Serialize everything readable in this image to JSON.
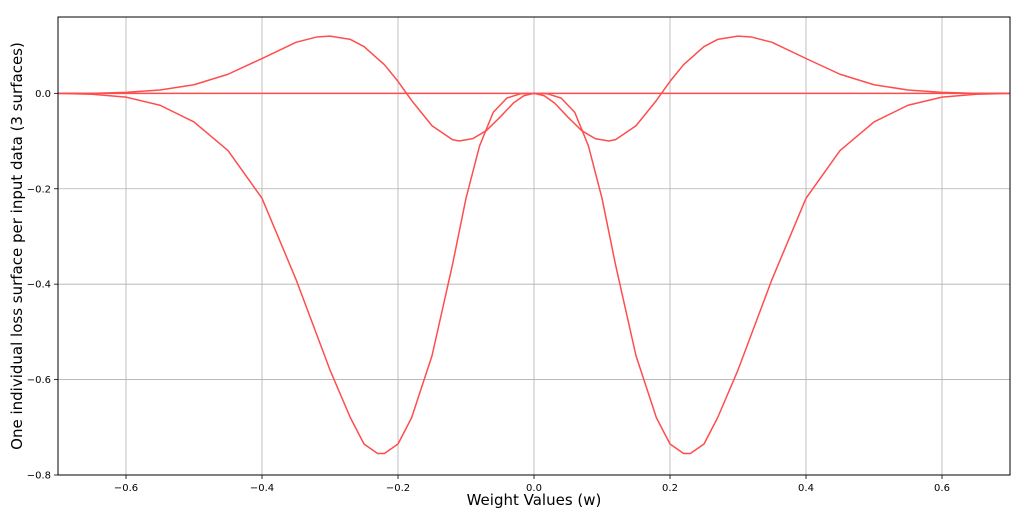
{
  "chart_data": {
    "type": "line",
    "title": "",
    "xlabel": "Weight Values (w)",
    "ylabel": "One individual loss surface per input data (3 surfaces)",
    "xlim": [
      -0.7,
      0.7
    ],
    "ylim": [
      -0.8,
      0.16
    ],
    "xticks": [
      -0.6,
      -0.4,
      -0.2,
      0.0,
      0.2,
      0.4,
      0.6
    ],
    "yticks": [
      -0.8,
      -0.6,
      -0.4,
      -0.2,
      0.0
    ],
    "xtick_labels": [
      "−0.6",
      "−0.4",
      "−0.2",
      "0.0",
      "0.2",
      "0.4",
      "0.6"
    ],
    "ytick_labels": [
      "−0.8",
      "−0.6",
      "−0.4",
      "−0.2",
      "0.0"
    ],
    "grid": true,
    "color": "#ff4d4d",
    "series": [
      {
        "x": [
          -0.7,
          -0.65,
          -0.6,
          -0.55,
          -0.5,
          -0.45,
          -0.4,
          -0.35,
          -0.3,
          -0.25,
          -0.2,
          -0.15,
          -0.1,
          -0.05,
          0.0,
          0.05,
          0.1,
          0.15,
          0.2,
          0.25,
          0.3,
          0.35,
          0.4,
          0.45,
          0.5,
          0.55,
          0.6,
          0.65,
          0.7
        ],
        "y": [
          0.0,
          0.0,
          0.0,
          0.0,
          0.0,
          0.0,
          0.0,
          0.0,
          0.0,
          0.0,
          0.0,
          0.0,
          0.0,
          0.0,
          0.0,
          0.0,
          0.0,
          0.0,
          0.0,
          0.0,
          0.0,
          0.0,
          0.0,
          0.0,
          0.0,
          0.0,
          0.0,
          0.0,
          0.0
        ]
      },
      {
        "x": [
          -0.7,
          -0.65,
          -0.6,
          -0.55,
          -0.5,
          -0.45,
          -0.4,
          -0.35,
          -0.32,
          -0.3,
          -0.27,
          -0.25,
          -0.22,
          -0.2,
          -0.18,
          -0.15,
          -0.12,
          -0.11,
          -0.09,
          -0.07,
          -0.05,
          -0.03,
          -0.015,
          0.0,
          0.015,
          0.03,
          0.05,
          0.07,
          0.09,
          0.11,
          0.12,
          0.15,
          0.18,
          0.2,
          0.22,
          0.25,
          0.27,
          0.3,
          0.32,
          0.35,
          0.4,
          0.45,
          0.5,
          0.55,
          0.6,
          0.65,
          0.7
        ],
        "y": [
          0.0,
          0.0,
          0.002,
          0.007,
          0.018,
          0.04,
          0.073,
          0.107,
          0.118,
          0.12,
          0.113,
          0.098,
          0.06,
          0.025,
          -0.015,
          -0.068,
          -0.097,
          -0.1,
          -0.095,
          -0.078,
          -0.05,
          -0.02,
          -0.005,
          0.0,
          -0.005,
          -0.02,
          -0.05,
          -0.078,
          -0.095,
          -0.1,
          -0.097,
          -0.068,
          -0.015,
          0.025,
          0.06,
          0.098,
          0.113,
          0.12,
          0.118,
          0.107,
          0.073,
          0.04,
          0.018,
          0.007,
          0.002,
          0.0,
          0.0
        ]
      },
      {
        "x": [
          -0.7,
          -0.65,
          -0.6,
          -0.55,
          -0.5,
          -0.45,
          -0.4,
          -0.35,
          -0.3,
          -0.27,
          -0.25,
          -0.23,
          -0.22,
          -0.2,
          -0.18,
          -0.15,
          -0.12,
          -0.1,
          -0.08,
          -0.06,
          -0.04,
          -0.02,
          0.0,
          0.02,
          0.04,
          0.06,
          0.08,
          0.1,
          0.12,
          0.15,
          0.18,
          0.2,
          0.22,
          0.23,
          0.25,
          0.27,
          0.3,
          0.35,
          0.4,
          0.45,
          0.5,
          0.55,
          0.6,
          0.65,
          0.7
        ],
        "y": [
          0.0,
          -0.002,
          -0.008,
          -0.025,
          -0.06,
          -0.12,
          -0.22,
          -0.39,
          -0.58,
          -0.68,
          -0.735,
          -0.755,
          -0.755,
          -0.735,
          -0.68,
          -0.55,
          -0.36,
          -0.22,
          -0.11,
          -0.04,
          -0.01,
          -0.001,
          0.0,
          -0.001,
          -0.01,
          -0.04,
          -0.11,
          -0.22,
          -0.36,
          -0.55,
          -0.68,
          -0.735,
          -0.755,
          -0.755,
          -0.735,
          -0.68,
          -0.58,
          -0.39,
          -0.22,
          -0.12,
          -0.06,
          -0.025,
          -0.008,
          -0.002,
          0.0
        ]
      }
    ]
  }
}
